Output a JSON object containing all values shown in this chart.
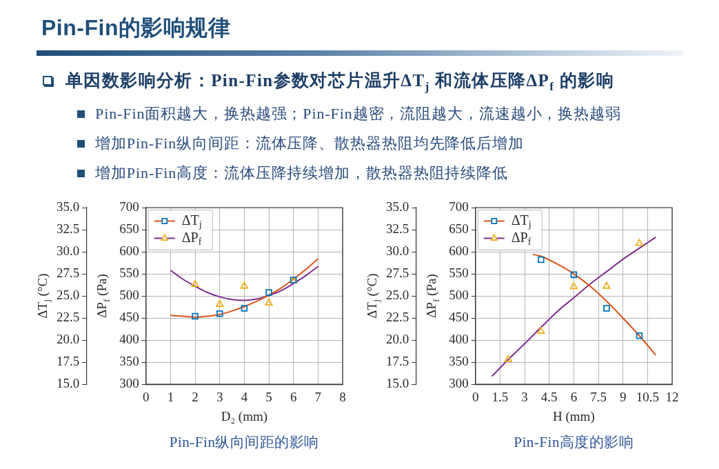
{
  "chart_data": [
    {
      "type": "other",
      "title": "Pin-Fin的影响规律",
      "subtitle": "单因数影响分析：Pin-Fin参数对芯片温升ΔT$_{j}$ 和流体压降ΔP$_{f}$ 的影响",
      "annotations": [
        "Pin-Fin面积越大，换热越强；Pin-Fin越密，流阻越大，流速越小，换热越弱",
        "增加Pin-Fin纵向间距：流体压降、散热器热阻均先降低后增加",
        "增加Pin-Fin高度：流体压降持续增加，散热器热阻持续降低"
      ]
    },
    {
      "type": "scatter",
      "xlabel": "D₂ (mm)",
      "ylabel": "ΔT$_{j}$ (°C)",
      "y2label": "ΔP$_{f}$ (Pa)",
      "xlim": [
        0,
        8
      ],
      "xticks": [
        0,
        1,
        2,
        3,
        4,
        5,
        6,
        7,
        8
      ],
      "ylim": [
        15,
        35
      ],
      "yticks": [
        {
          "value": 15,
          "label": "15.0"
        },
        {
          "value": 17.5,
          "label": "17.5"
        },
        {
          "value": 20,
          "label": "20.0"
        },
        {
          "value": 22.5,
          "label": "22.5"
        },
        {
          "value": 25,
          "label": "25.0"
        },
        {
          "value": 27.5,
          "label": "27.5"
        },
        {
          "value": 30,
          "label": "30.0"
        },
        {
          "value": 32.5,
          "label": "32.5"
        },
        {
          "value": 35,
          "label": "35.0"
        }
      ],
      "y2lim": [
        300,
        700
      ],
      "y2ticks": [
        300,
        350,
        400,
        450,
        500,
        550,
        600,
        650,
        700
      ],
      "grid": true,
      "legend": "top left",
      "series": [
        {
          "name": "ΔT$_{j}$",
          "type": "scatter",
          "marker": "square",
          "color": "#0072bd",
          "x": [
            2,
            3,
            4,
            5,
            6
          ],
          "values": [
            22.7,
            23.0,
            23.6,
            25.4,
            26.8
          ]
        },
        {
          "type": "line",
          "marker": "none",
          "color": "#d95319",
          "x": [
            1,
            1.5,
            2,
            2.5,
            3,
            3.5,
            4,
            4.5,
            5,
            5.5,
            6,
            6.5,
            7
          ],
          "values": [
            22.8,
            22.7,
            22.6,
            22.7,
            22.9,
            23.3,
            23.8,
            24.4,
            25.1,
            25.9,
            26.9,
            28.0,
            29.2
          ]
        },
        {
          "name": "ΔP$_{f}$",
          "type": "scatter",
          "marker": "triangle",
          "color": "#edb120",
          "axis": "y2",
          "x": [
            2,
            3,
            4,
            5,
            6
          ],
          "values": [
            526,
            481,
            522,
            484,
            534
          ]
        },
        {
          "type": "line",
          "marker": "none",
          "color": "#7e2f8e",
          "axis": "y2",
          "x": [
            1,
            1.5,
            2,
            2.5,
            3,
            3.5,
            4,
            4.5,
            5,
            5.5,
            6,
            6.5,
            7
          ],
          "values": [
            558,
            538,
            522,
            508,
            498,
            492,
            490,
            493,
            501,
            512,
            528,
            546,
            567
          ]
        }
      ],
      "annotations": [
        "Pin-Fin纵向间距的影响"
      ]
    },
    {
      "type": "scatter",
      "xlabel": "H (mm)",
      "ylabel": "ΔT$_{j}$ (°C)",
      "y2label": "ΔP$_{f}$ (Pa)",
      "xlim": [
        0,
        12
      ],
      "xticks": [
        0,
        1.5,
        3,
        4.5,
        6,
        7.5,
        9,
        10.5,
        12
      ],
      "ylim": [
        15,
        35
      ],
      "yticks": [
        {
          "value": 15,
          "label": "15.0"
        },
        {
          "value": 17.5,
          "label": "17.5"
        },
        {
          "value": 20,
          "label": "20.0"
        },
        {
          "value": 22.5,
          "label": "22.5"
        },
        {
          "value": 25,
          "label": "25.0"
        },
        {
          "value": 27.5,
          "label": "27.5"
        },
        {
          "value": 30,
          "label": "30.0"
        },
        {
          "value": 32.5,
          "label": "32.5"
        },
        {
          "value": 35,
          "label": "35.0"
        }
      ],
      "y2lim": [
        300,
        700
      ],
      "y2ticks": [
        300,
        350,
        400,
        450,
        500,
        550,
        600,
        650,
        700
      ],
      "grid": true,
      "legend": "top left",
      "series": [
        {
          "name": "ΔT$_{j}$",
          "type": "scatter",
          "marker": "square",
          "color": "#0072bd",
          "x": [
            4,
            6,
            8,
            10
          ],
          "values": [
            29.1,
            27.4,
            23.6,
            20.5
          ]
        },
        {
          "type": "line",
          "marker": "none",
          "color": "#d95319",
          "x": [
            3.5,
            4,
            5,
            6,
            7,
            8,
            9,
            10,
            11
          ],
          "values": [
            29.7,
            29.5,
            28.6,
            27.5,
            26.1,
            24.4,
            22.5,
            20.5,
            18.3
          ]
        },
        {
          "name": "ΔP$_{f}$",
          "type": "scatter",
          "marker": "triangle",
          "color": "#edb120",
          "axis": "y2",
          "x": [
            2,
            4,
            6,
            8,
            10
          ],
          "values": [
            356,
            420,
            521,
            522,
            619
          ]
        },
        {
          "type": "line",
          "marker": "none",
          "color": "#7e2f8e",
          "axis": "y2",
          "x": [
            1,
            2,
            3,
            4,
            5,
            6,
            7,
            8,
            9,
            10,
            11
          ],
          "values": [
            318,
            356,
            392,
            429,
            465,
            496,
            527,
            555,
            583,
            608,
            633
          ]
        }
      ],
      "annotations": [
        "Pin-Fin高度的影响"
      ]
    }
  ]
}
